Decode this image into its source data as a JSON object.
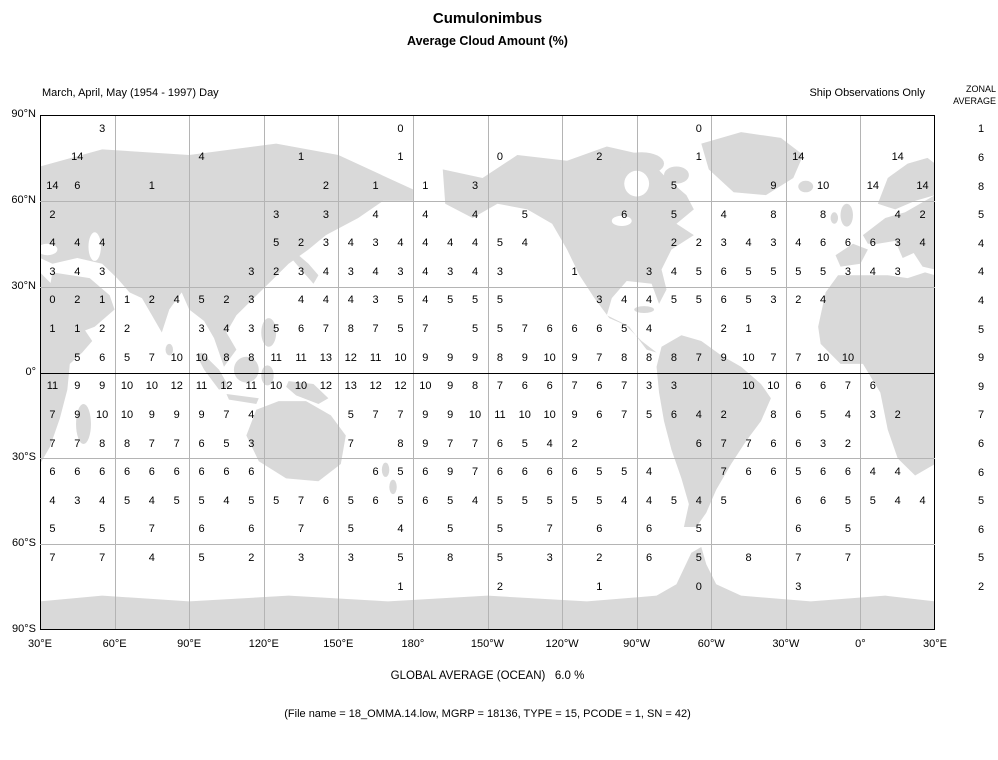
{
  "title": "Cumulonimbus",
  "subtitle": "Average Cloud Amount (%)",
  "header": {
    "period": "March, April, May (1954 - 1997) Day",
    "source": "Ship Observations Only",
    "zonal_label_line1": "ZONAL",
    "zonal_label_line2": "AVERAGE"
  },
  "footer": {
    "global_average": "GLOBAL AVERAGE (OCEAN)   6.0 %",
    "file_info": "(File name = 18_OMMA.14.low, MGRP = 18136, TYPE = 15, PCODE = 1, SN = 42)"
  },
  "colors": {
    "land": "#d9d9d9",
    "grid_line": "#b4b4b4",
    "axis_line": "#000000",
    "text": "#000000"
  },
  "chart_data": {
    "type": "heatmap",
    "title": "Cumulonimbus",
    "subtitle": "Average Cloud Amount (%)",
    "season": "March, April, May (1954 - 1997) Day",
    "source": "Ship Observations Only",
    "units": "percent average cloud amount",
    "projection": "equirectangular world map starting at 30E, wrapping eastward back to 30E",
    "cell_size_deg": 10,
    "lon_axis_labels": [
      "30°E",
      "60°E",
      "90°E",
      "120°E",
      "150°E",
      "180°",
      "150°W",
      "120°W",
      "90°W",
      "60°W",
      "30°W",
      "0°",
      "30°E"
    ],
    "lat_axis_labels": [
      "90°N",
      "60°N",
      "30°N",
      "0°",
      "30°S",
      "60°S",
      "90°S"
    ],
    "lat_bands": [
      "90N-80N",
      "80N-70N",
      "70N-60N",
      "60N-50N",
      "50N-40N",
      "40N-30N",
      "30N-20N",
      "20N-10N",
      "10N-0",
      "0-10S",
      "10S-20S",
      "20S-30S",
      "30S-40S",
      "40S-50S",
      "50S-60S",
      "60S-70S",
      "70S-80S",
      "80S-90S"
    ],
    "zonal_averages": [
      "1",
      "6",
      "8",
      "5",
      "4",
      "4",
      "4",
      "5",
      "9",
      "9",
      "7",
      "6",
      "6",
      "5",
      "6",
      "5",
      "2",
      ""
    ],
    "global_average_ocean_pct": 6.0,
    "grid": [
      [
        "",
        "",
        "3",
        "",
        "",
        "",
        "",
        "",
        "",
        "",
        "",
        "",
        "",
        "",
        "0",
        "",
        "",
        "",
        "",
        "",
        "",
        "",
        "",
        "",
        "",
        "",
        "0",
        "",
        "",
        "",
        "",
        "",
        "",
        "",
        "",
        ""
      ],
      [
        "",
        "14",
        "",
        "",
        "",
        "",
        "4",
        "",
        "",
        "",
        "1",
        "",
        "",
        "",
        "1",
        "",
        "",
        "",
        "0",
        "",
        "",
        "",
        "2",
        "",
        "",
        "",
        "1",
        "",
        "",
        "",
        "14",
        "",
        "",
        "",
        "14",
        ""
      ],
      [
        "14",
        "6",
        "",
        "",
        "1",
        "",
        "",
        "",
        "",
        "",
        "",
        "2",
        "",
        "1",
        "",
        "1",
        "",
        "3",
        "",
        "",
        "",
        "",
        "",
        "",
        "",
        "5",
        "",
        "",
        "",
        "9",
        "",
        "10",
        "",
        "14",
        "",
        "14"
      ],
      [
        "2",
        "",
        "",
        "",
        "",
        "",
        "",
        "",
        "",
        "3",
        "",
        "3",
        "",
        "4",
        "",
        "4",
        "",
        "4",
        "",
        "5",
        "",
        "",
        "",
        "6",
        "",
        "5",
        "",
        "4",
        "",
        "8",
        "",
        "8",
        "",
        "",
        "4",
        "2"
      ],
      [
        "4",
        "4",
        "4",
        "",
        "",
        "",
        "",
        "",
        "",
        "5",
        "2",
        "3",
        "4",
        "3",
        "4",
        "4",
        "4",
        "4",
        "5",
        "4",
        "",
        "",
        "",
        "",
        "",
        "2",
        "2",
        "3",
        "4",
        "3",
        "4",
        "6",
        "6",
        "6",
        "3",
        "4"
      ],
      [
        "3",
        "4",
        "3",
        "",
        "",
        "",
        "",
        "",
        "3",
        "2",
        "3",
        "4",
        "3",
        "4",
        "3",
        "4",
        "3",
        "4",
        "3",
        "",
        "",
        "1",
        "",
        "",
        "3",
        "4",
        "5",
        "6",
        "5",
        "5",
        "5",
        "5",
        "3",
        "4",
        "3",
        ""
      ],
      [
        "0",
        "2",
        "1",
        "1",
        "2",
        "4",
        "5",
        "2",
        "3",
        "",
        "4",
        "4",
        "4",
        "3",
        "5",
        "4",
        "5",
        "5",
        "5",
        "",
        "",
        "",
        "3",
        "4",
        "4",
        "5",
        "5",
        "6",
        "5",
        "3",
        "2",
        "4",
        "",
        "",
        "",
        ""
      ],
      [
        "1",
        "1",
        "2",
        "2",
        "",
        "",
        "3",
        "4",
        "3",
        "5",
        "6",
        "7",
        "8",
        "7",
        "5",
        "7",
        "",
        "5",
        "5",
        "7",
        "6",
        "6",
        "6",
        "5",
        "4",
        "",
        "",
        "2",
        "1",
        "",
        "",
        "",
        "",
        "",
        "",
        ""
      ],
      [
        "",
        "5",
        "6",
        "5",
        "7",
        "10",
        "10",
        "8",
        "8",
        "11",
        "11",
        "13",
        "12",
        "11",
        "10",
        "9",
        "9",
        "9",
        "8",
        "9",
        "10",
        "9",
        "7",
        "8",
        "8",
        "8",
        "7",
        "9",
        "10",
        "7",
        "7",
        "10",
        "10",
        "",
        "",
        ""
      ],
      [
        "11",
        "9",
        "9",
        "10",
        "10",
        "12",
        "11",
        "12",
        "11",
        "10",
        "10",
        "12",
        "13",
        "12",
        "12",
        "10",
        "9",
        "8",
        "7",
        "6",
        "6",
        "7",
        "6",
        "7",
        "3",
        "3",
        "",
        "",
        "10",
        "10",
        "6",
        "6",
        "7",
        "6",
        "",
        ""
      ],
      [
        "7",
        "9",
        "10",
        "10",
        "9",
        "9",
        "9",
        "7",
        "4",
        "",
        "",
        "",
        "5",
        "7",
        "7",
        "9",
        "9",
        "10",
        "11",
        "10",
        "10",
        "9",
        "6",
        "7",
        "5",
        "6",
        "4",
        "2",
        "",
        "8",
        "6",
        "5",
        "4",
        "3",
        "2",
        ""
      ],
      [
        "7",
        "7",
        "8",
        "8",
        "7",
        "7",
        "6",
        "5",
        "3",
        "",
        "",
        "",
        "7",
        "",
        "8",
        "9",
        "7",
        "7",
        "6",
        "5",
        "4",
        "2",
        "",
        "",
        "",
        "",
        "6",
        "7",
        "7",
        "6",
        "6",
        "3",
        "2",
        "",
        "",
        ""
      ],
      [
        "6",
        "6",
        "6",
        "6",
        "6",
        "6",
        "6",
        "6",
        "6",
        "",
        "",
        "",
        "",
        "6",
        "5",
        "6",
        "9",
        "7",
        "6",
        "6",
        "6",
        "6",
        "5",
        "5",
        "4",
        "",
        "",
        "7",
        "6",
        "6",
        "5",
        "6",
        "6",
        "4",
        "4",
        ""
      ],
      [
        "4",
        "3",
        "4",
        "5",
        "4",
        "5",
        "5",
        "4",
        "5",
        "5",
        "7",
        "6",
        "5",
        "6",
        "5",
        "6",
        "5",
        "4",
        "5",
        "5",
        "5",
        "5",
        "5",
        "4",
        "4",
        "5",
        "4",
        "5",
        "",
        "",
        "6",
        "6",
        "5",
        "5",
        "4",
        "4"
      ],
      [
        "5",
        "",
        "5",
        "",
        "7",
        "",
        "6",
        "",
        "6",
        "",
        "7",
        "",
        "5",
        "",
        "4",
        "",
        "5",
        "",
        "5",
        "",
        "7",
        "",
        "6",
        "",
        "6",
        "",
        "5",
        "",
        "",
        "",
        "6",
        "",
        "5",
        "",
        "",
        ""
      ],
      [
        "7",
        "",
        "7",
        "",
        "4",
        "",
        "5",
        "",
        "2",
        "",
        "3",
        "",
        "3",
        "",
        "5",
        "",
        "8",
        "",
        "5",
        "",
        "3",
        "",
        "2",
        "",
        "6",
        "",
        "5",
        "",
        "8",
        "",
        "7",
        "",
        "7",
        "",
        "",
        ""
      ],
      [
        "",
        "",
        "",
        "",
        "",
        "",
        "",
        "",
        "",
        "",
        "",
        "",
        "",
        "",
        "1",
        "",
        "",
        "",
        "2",
        "",
        "",
        "",
        "1",
        "",
        "",
        "",
        "0",
        "",
        "",
        "",
        "3",
        "",
        "",
        "",
        "",
        ""
      ],
      [
        "",
        "",
        "",
        "",
        "",
        "",
        "",
        "",
        "",
        "",
        "",
        "",
        "",
        "",
        "",
        "",
        "",
        "",
        "",
        "",
        "",
        "",
        "",
        "",
        "",
        "",
        "",
        "",
        "",
        "",
        "",
        "",
        "",
        "",
        "",
        ""
      ]
    ]
  }
}
